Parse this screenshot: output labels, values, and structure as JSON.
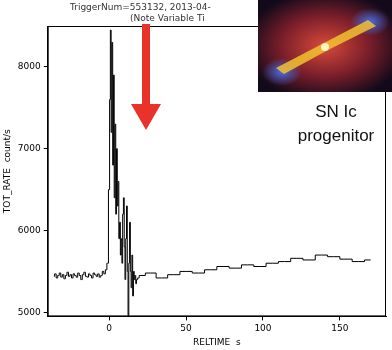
{
  "chart_data": {
    "type": "line",
    "title": "TriggerNum=553132, 2013-04-",
    "subtitle": "(Note Variable Ti",
    "x_label": "RELTIME  s",
    "y_label": "TOT_RATE  count/s",
    "annotations": [
      "SN Ic progenitor"
    ],
    "x": [
      -36,
      -35,
      -34,
      -33,
      -32,
      -31,
      -30,
      -29,
      -28,
      -27,
      -26,
      -25,
      -24,
      -23,
      -22,
      -21,
      -20,
      -19,
      -18,
      -17,
      -16,
      -15,
      -14,
      -13,
      -12,
      -11,
      -10,
      -9,
      -8,
      -7,
      -6,
      -5,
      -4,
      -3,
      -2,
      -1,
      0,
      0.5,
      1,
      1.5,
      2,
      2.5,
      3,
      3.5,
      4,
      4.5,
      5,
      5.5,
      6,
      6.5,
      7,
      7.5,
      8,
      8.5,
      9,
      9.5,
      10,
      10.5,
      11,
      11.5,
      12,
      12.5,
      13,
      13.5,
      14,
      14.5,
      15,
      15.5,
      16,
      16.5,
      17,
      17.5,
      18,
      19,
      20,
      27,
      34,
      42,
      50,
      58,
      66,
      74,
      82,
      90,
      98,
      106,
      114,
      122,
      130,
      138,
      146,
      154,
      162,
      170
    ],
    "values": [
      5440,
      5470,
      5420,
      5450,
      5480,
      5430,
      5460,
      5410,
      5450,
      5490,
      5440,
      5460,
      5420,
      5470,
      5450,
      5430,
      5480,
      5450,
      5400,
      5460,
      5490,
      5440,
      5430,
      5470,
      5450,
      5420,
      5480,
      5460,
      5440,
      5470,
      5430,
      5450,
      5500,
      5470,
      5520,
      5600,
      6500,
      7600,
      8450,
      7200,
      8300,
      6800,
      7900,
      6400,
      7300,
      6200,
      7000,
      6300,
      6600,
      5900,
      6100,
      5700,
      5900,
      5600,
      6200,
      6400,
      5800,
      5400,
      5900,
      6300,
      5500,
      4960,
      5600,
      6100,
      5500,
      5300,
      5700,
      5200,
      5500,
      5400,
      5450,
      5350,
      5400,
      5420,
      5450,
      5480,
      5420,
      5460,
      5500,
      5480,
      5520,
      5560,
      5540,
      5580,
      5560,
      5600,
      5620,
      5660,
      5640,
      5700,
      5680,
      5650,
      5620,
      5640
    ],
    "color": "#000000",
    "line_style": "steps",
    "xlim": [
      -40,
      180
    ],
    "xticks": [
      0,
      50,
      100,
      150
    ],
    "ylim": [
      4950,
      8500
    ],
    "yticks": [
      5000,
      6000,
      7000,
      8000
    ],
    "grid": false
  }
}
